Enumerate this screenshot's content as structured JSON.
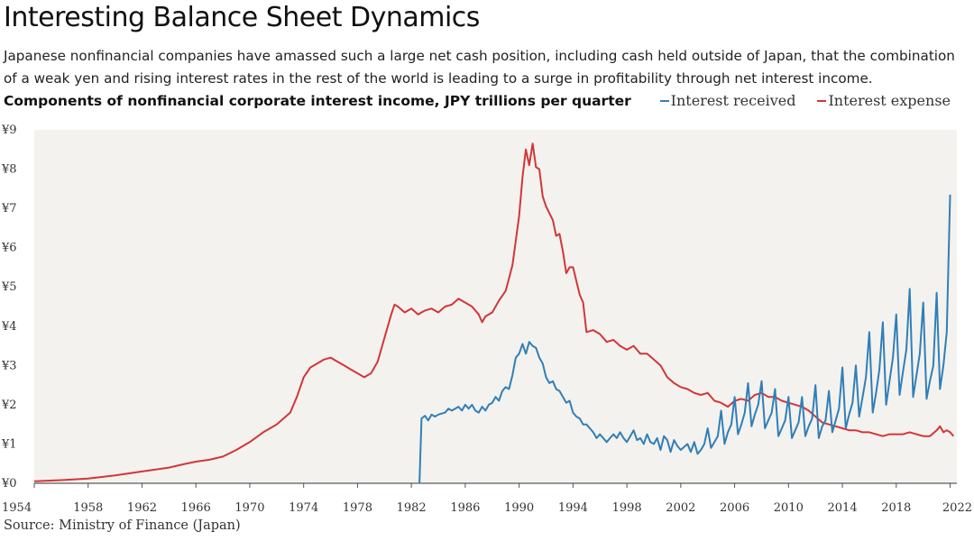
{
  "header": {
    "title": "Interesting Balance Sheet Dynamics",
    "subtitle": "Japanese nonfinancial companies have amassed such a large net cash position, including cash held outside of Japan, that the combination of a weak yen and rising interest rates in the rest of the world is leading to a surge in profitability through net interest income.",
    "chart_heading": "Components of nonfinancial corporate interest income, JPY trillions per quarter"
  },
  "source": "Source: Ministry of Finance (Japan)",
  "colors": {
    "interest_received": "#2f7fb8",
    "interest_expense": "#d1363a",
    "plot_background": "#f4f2ee"
  },
  "chart_data": {
    "type": "line",
    "title": "Components of nonfinancial corporate interest income, JPY trillions per quarter",
    "xlabel": "",
    "ylabel": "",
    "xlim": [
      1954,
      2022.5
    ],
    "ylim": [
      0,
      9
    ],
    "x_ticks": [
      1954,
      1958,
      1962,
      1966,
      1970,
      1974,
      1978,
      1982,
      1986,
      1990,
      1994,
      1998,
      2002,
      2006,
      2010,
      2014,
      2018,
      2022
    ],
    "x_tick_labels": [
      "1954",
      "1958",
      "1962",
      "1966",
      "1970",
      "1974",
      "1978",
      "1982",
      "1986",
      "1990",
      "1994",
      "1998",
      "2002",
      "2006",
      "2010",
      "2014",
      "2018",
      "2022"
    ],
    "y_ticks": [
      0,
      1,
      2,
      3,
      4,
      5,
      6,
      7,
      8,
      9
    ],
    "y_tick_labels": [
      "¥0",
      "¥1",
      "¥2",
      "¥3",
      "¥4",
      "¥5",
      "¥6",
      "¥7",
      "¥8",
      "¥9"
    ],
    "grid": false,
    "legend_position": "top-right",
    "series": [
      {
        "name": "Interest received",
        "color": "#2f7fb8",
        "points": [
          [
            1982.6,
            0
          ],
          [
            1982.75,
            1.65
          ],
          [
            1983,
            1.72
          ],
          [
            1983.25,
            1.6
          ],
          [
            1983.5,
            1.75
          ],
          [
            1983.75,
            1.7
          ],
          [
            1984,
            1.75
          ],
          [
            1984.5,
            1.8
          ],
          [
            1984.75,
            1.9
          ],
          [
            1985,
            1.85
          ],
          [
            1985.5,
            1.95
          ],
          [
            1985.75,
            1.85
          ],
          [
            1986,
            2.0
          ],
          [
            1986.25,
            1.9
          ],
          [
            1986.5,
            2.0
          ],
          [
            1986.75,
            1.85
          ],
          [
            1987,
            1.8
          ],
          [
            1987.25,
            1.95
          ],
          [
            1987.5,
            1.85
          ],
          [
            1987.75,
            2.0
          ],
          [
            1988,
            2.05
          ],
          [
            1988.25,
            2.2
          ],
          [
            1988.5,
            2.1
          ],
          [
            1988.75,
            2.35
          ],
          [
            1989,
            2.45
          ],
          [
            1989.25,
            2.4
          ],
          [
            1989.5,
            2.75
          ],
          [
            1989.75,
            3.2
          ],
          [
            1990,
            3.3
          ],
          [
            1990.25,
            3.55
          ],
          [
            1990.5,
            3.3
          ],
          [
            1990.75,
            3.6
          ],
          [
            1991,
            3.5
          ],
          [
            1991.25,
            3.45
          ],
          [
            1991.5,
            3.2
          ],
          [
            1991.75,
            3.05
          ],
          [
            1992,
            2.7
          ],
          [
            1992.25,
            2.55
          ],
          [
            1992.5,
            2.6
          ],
          [
            1992.75,
            2.4
          ],
          [
            1993,
            2.35
          ],
          [
            1993.25,
            2.2
          ],
          [
            1993.5,
            2.05
          ],
          [
            1993.75,
            2.1
          ],
          [
            1994,
            1.8
          ],
          [
            1994.25,
            1.7
          ],
          [
            1994.5,
            1.65
          ],
          [
            1994.75,
            1.5
          ],
          [
            1995,
            1.5
          ],
          [
            1995.5,
            1.3
          ],
          [
            1995.75,
            1.15
          ],
          [
            1996,
            1.25
          ],
          [
            1996.5,
            1.05
          ],
          [
            1996.75,
            1.15
          ],
          [
            1997,
            1.25
          ],
          [
            1997.25,
            1.15
          ],
          [
            1997.5,
            1.3
          ],
          [
            1997.75,
            1.15
          ],
          [
            1998,
            1.05
          ],
          [
            1998.5,
            1.35
          ],
          [
            1998.75,
            1.1
          ],
          [
            1999,
            1.15
          ],
          [
            1999.25,
            1.0
          ],
          [
            1999.5,
            1.25
          ],
          [
            1999.75,
            1.05
          ],
          [
            2000,
            1.0
          ],
          [
            2000.25,
            1.15
          ],
          [
            2000.5,
            0.85
          ],
          [
            2000.75,
            1.2
          ],
          [
            2001,
            1.1
          ],
          [
            2001.25,
            0.8
          ],
          [
            2001.5,
            1.1
          ],
          [
            2001.75,
            0.95
          ],
          [
            2002,
            0.85
          ],
          [
            2002.5,
            1.0
          ],
          [
            2002.75,
            0.8
          ],
          [
            2003,
            1.05
          ],
          [
            2003.25,
            0.75
          ],
          [
            2003.5,
            0.85
          ],
          [
            2003.75,
            1.0
          ],
          [
            2004,
            1.4
          ],
          [
            2004.25,
            0.9
          ],
          [
            2004.5,
            1.05
          ],
          [
            2004.75,
            1.2
          ],
          [
            2005,
            1.85
          ],
          [
            2005.25,
            1.0
          ],
          [
            2005.5,
            1.3
          ],
          [
            2005.75,
            1.5
          ],
          [
            2006,
            2.2
          ],
          [
            2006.25,
            1.25
          ],
          [
            2006.5,
            1.5
          ],
          [
            2006.75,
            1.8
          ],
          [
            2007,
            2.55
          ],
          [
            2007.25,
            1.45
          ],
          [
            2007.5,
            1.75
          ],
          [
            2007.75,
            2.0
          ],
          [
            2008,
            2.6
          ],
          [
            2008.25,
            1.4
          ],
          [
            2008.5,
            1.6
          ],
          [
            2008.75,
            1.8
          ],
          [
            2009,
            2.4
          ],
          [
            2009.25,
            1.2
          ],
          [
            2009.5,
            1.4
          ],
          [
            2009.75,
            1.6
          ],
          [
            2010,
            2.2
          ],
          [
            2010.25,
            1.15
          ],
          [
            2010.5,
            1.35
          ],
          [
            2010.75,
            1.55
          ],
          [
            2011,
            2.2
          ],
          [
            2011.25,
            1.2
          ],
          [
            2011.5,
            1.45
          ],
          [
            2011.75,
            1.65
          ],
          [
            2012,
            2.5
          ],
          [
            2012.25,
            1.15
          ],
          [
            2012.5,
            1.45
          ],
          [
            2012.75,
            1.6
          ],
          [
            2013,
            2.35
          ],
          [
            2013.25,
            1.3
          ],
          [
            2013.5,
            1.6
          ],
          [
            2013.75,
            1.9
          ],
          [
            2014,
            2.95
          ],
          [
            2014.25,
            1.4
          ],
          [
            2014.5,
            1.75
          ],
          [
            2014.75,
            2.05
          ],
          [
            2015,
            3.0
          ],
          [
            2015.25,
            1.7
          ],
          [
            2015.5,
            2.2
          ],
          [
            2015.75,
            2.7
          ],
          [
            2016,
            3.85
          ],
          [
            2016.25,
            1.8
          ],
          [
            2016.5,
            2.3
          ],
          [
            2016.75,
            2.9
          ],
          [
            2017,
            4.1
          ],
          [
            2017.25,
            2.0
          ],
          [
            2017.5,
            2.6
          ],
          [
            2017.75,
            3.2
          ],
          [
            2018,
            4.3
          ],
          [
            2018.25,
            2.25
          ],
          [
            2018.5,
            2.85
          ],
          [
            2018.75,
            3.4
          ],
          [
            2019,
            4.95
          ],
          [
            2019.25,
            2.2
          ],
          [
            2019.5,
            2.75
          ],
          [
            2019.75,
            3.3
          ],
          [
            2020,
            4.6
          ],
          [
            2020.25,
            2.15
          ],
          [
            2020.5,
            2.6
          ],
          [
            2020.75,
            3.0
          ],
          [
            2021,
            4.85
          ],
          [
            2021.25,
            2.4
          ],
          [
            2021.5,
            3.0
          ],
          [
            2021.75,
            3.85
          ],
          [
            2022,
            7.35
          ]
        ]
      },
      {
        "name": "Interest expense",
        "color": "#d1363a",
        "points": [
          [
            1954,
            0.05
          ],
          [
            1956,
            0.08
          ],
          [
            1958,
            0.12
          ],
          [
            1960,
            0.2
          ],
          [
            1962,
            0.3
          ],
          [
            1964,
            0.4
          ],
          [
            1965,
            0.48
          ],
          [
            1966,
            0.55
          ],
          [
            1967,
            0.6
          ],
          [
            1968,
            0.68
          ],
          [
            1969,
            0.85
          ],
          [
            1970,
            1.05
          ],
          [
            1971,
            1.3
          ],
          [
            1972,
            1.5
          ],
          [
            1973,
            1.8
          ],
          [
            1973.5,
            2.2
          ],
          [
            1974,
            2.7
          ],
          [
            1974.5,
            2.95
          ],
          [
            1975,
            3.05
          ],
          [
            1975.5,
            3.15
          ],
          [
            1976,
            3.2
          ],
          [
            1976.5,
            3.1
          ],
          [
            1977,
            3.0
          ],
          [
            1977.5,
            2.9
          ],
          [
            1978,
            2.8
          ],
          [
            1978.5,
            2.7
          ],
          [
            1979,
            2.8
          ],
          [
            1979.5,
            3.1
          ],
          [
            1980,
            3.7
          ],
          [
            1980.5,
            4.3
          ],
          [
            1980.75,
            4.55
          ],
          [
            1981,
            4.5
          ],
          [
            1981.5,
            4.35
          ],
          [
            1982,
            4.45
          ],
          [
            1982.5,
            4.3
          ],
          [
            1983,
            4.4
          ],
          [
            1983.5,
            4.45
          ],
          [
            1984,
            4.35
          ],
          [
            1984.5,
            4.5
          ],
          [
            1985,
            4.55
          ],
          [
            1985.5,
            4.7
          ],
          [
            1986,
            4.6
          ],
          [
            1986.5,
            4.5
          ],
          [
            1987,
            4.3
          ],
          [
            1987.25,
            4.1
          ],
          [
            1987.5,
            4.25
          ],
          [
            1988,
            4.35
          ],
          [
            1988.5,
            4.65
          ],
          [
            1989,
            4.9
          ],
          [
            1989.5,
            5.55
          ],
          [
            1990,
            6.8
          ],
          [
            1990.25,
            7.8
          ],
          [
            1990.5,
            8.5
          ],
          [
            1990.75,
            8.1
          ],
          [
            1991,
            8.65
          ],
          [
            1991.25,
            8.05
          ],
          [
            1991.5,
            8.0
          ],
          [
            1991.75,
            7.3
          ],
          [
            1992,
            7.05
          ],
          [
            1992.5,
            6.7
          ],
          [
            1992.75,
            6.3
          ],
          [
            1993,
            6.35
          ],
          [
            1993.25,
            5.9
          ],
          [
            1993.5,
            5.35
          ],
          [
            1993.75,
            5.5
          ],
          [
            1994,
            5.5
          ],
          [
            1994.5,
            4.8
          ],
          [
            1994.75,
            4.6
          ],
          [
            1995,
            3.85
          ],
          [
            1995.5,
            3.9
          ],
          [
            1996,
            3.8
          ],
          [
            1996.5,
            3.6
          ],
          [
            1997,
            3.65
          ],
          [
            1997.5,
            3.5
          ],
          [
            1998,
            3.4
          ],
          [
            1998.5,
            3.5
          ],
          [
            1999,
            3.3
          ],
          [
            1999.5,
            3.3
          ],
          [
            2000,
            3.15
          ],
          [
            2000.5,
            3.0
          ],
          [
            2001,
            2.7
          ],
          [
            2001.5,
            2.55
          ],
          [
            2002,
            2.45
          ],
          [
            2002.5,
            2.4
          ],
          [
            2003,
            2.3
          ],
          [
            2003.5,
            2.25
          ],
          [
            2004,
            2.3
          ],
          [
            2004.5,
            2.1
          ],
          [
            2005,
            2.05
          ],
          [
            2005.5,
            1.95
          ],
          [
            2006,
            2.1
          ],
          [
            2006.5,
            2.15
          ],
          [
            2007,
            2.1
          ],
          [
            2007.5,
            2.25
          ],
          [
            2008,
            2.3
          ],
          [
            2008.5,
            2.2
          ],
          [
            2009,
            2.2
          ],
          [
            2009.5,
            2.1
          ],
          [
            2010,
            2.05
          ],
          [
            2010.5,
            2.0
          ],
          [
            2011,
            1.95
          ],
          [
            2011.5,
            1.85
          ],
          [
            2012,
            1.7
          ],
          [
            2012.5,
            1.55
          ],
          [
            2013,
            1.5
          ],
          [
            2013.5,
            1.45
          ],
          [
            2014,
            1.4
          ],
          [
            2014.5,
            1.35
          ],
          [
            2015,
            1.35
          ],
          [
            2015.5,
            1.3
          ],
          [
            2016,
            1.3
          ],
          [
            2016.5,
            1.25
          ],
          [
            2017,
            1.2
          ],
          [
            2017.5,
            1.25
          ],
          [
            2018,
            1.25
          ],
          [
            2018.5,
            1.25
          ],
          [
            2019,
            1.3
          ],
          [
            2019.5,
            1.25
          ],
          [
            2020,
            1.2
          ],
          [
            2020.5,
            1.2
          ],
          [
            2021,
            1.35
          ],
          [
            2021.25,
            1.45
          ],
          [
            2021.5,
            1.3
          ],
          [
            2021.75,
            1.35
          ],
          [
            2022,
            1.3
          ],
          [
            2022.25,
            1.2
          ]
        ]
      }
    ]
  }
}
